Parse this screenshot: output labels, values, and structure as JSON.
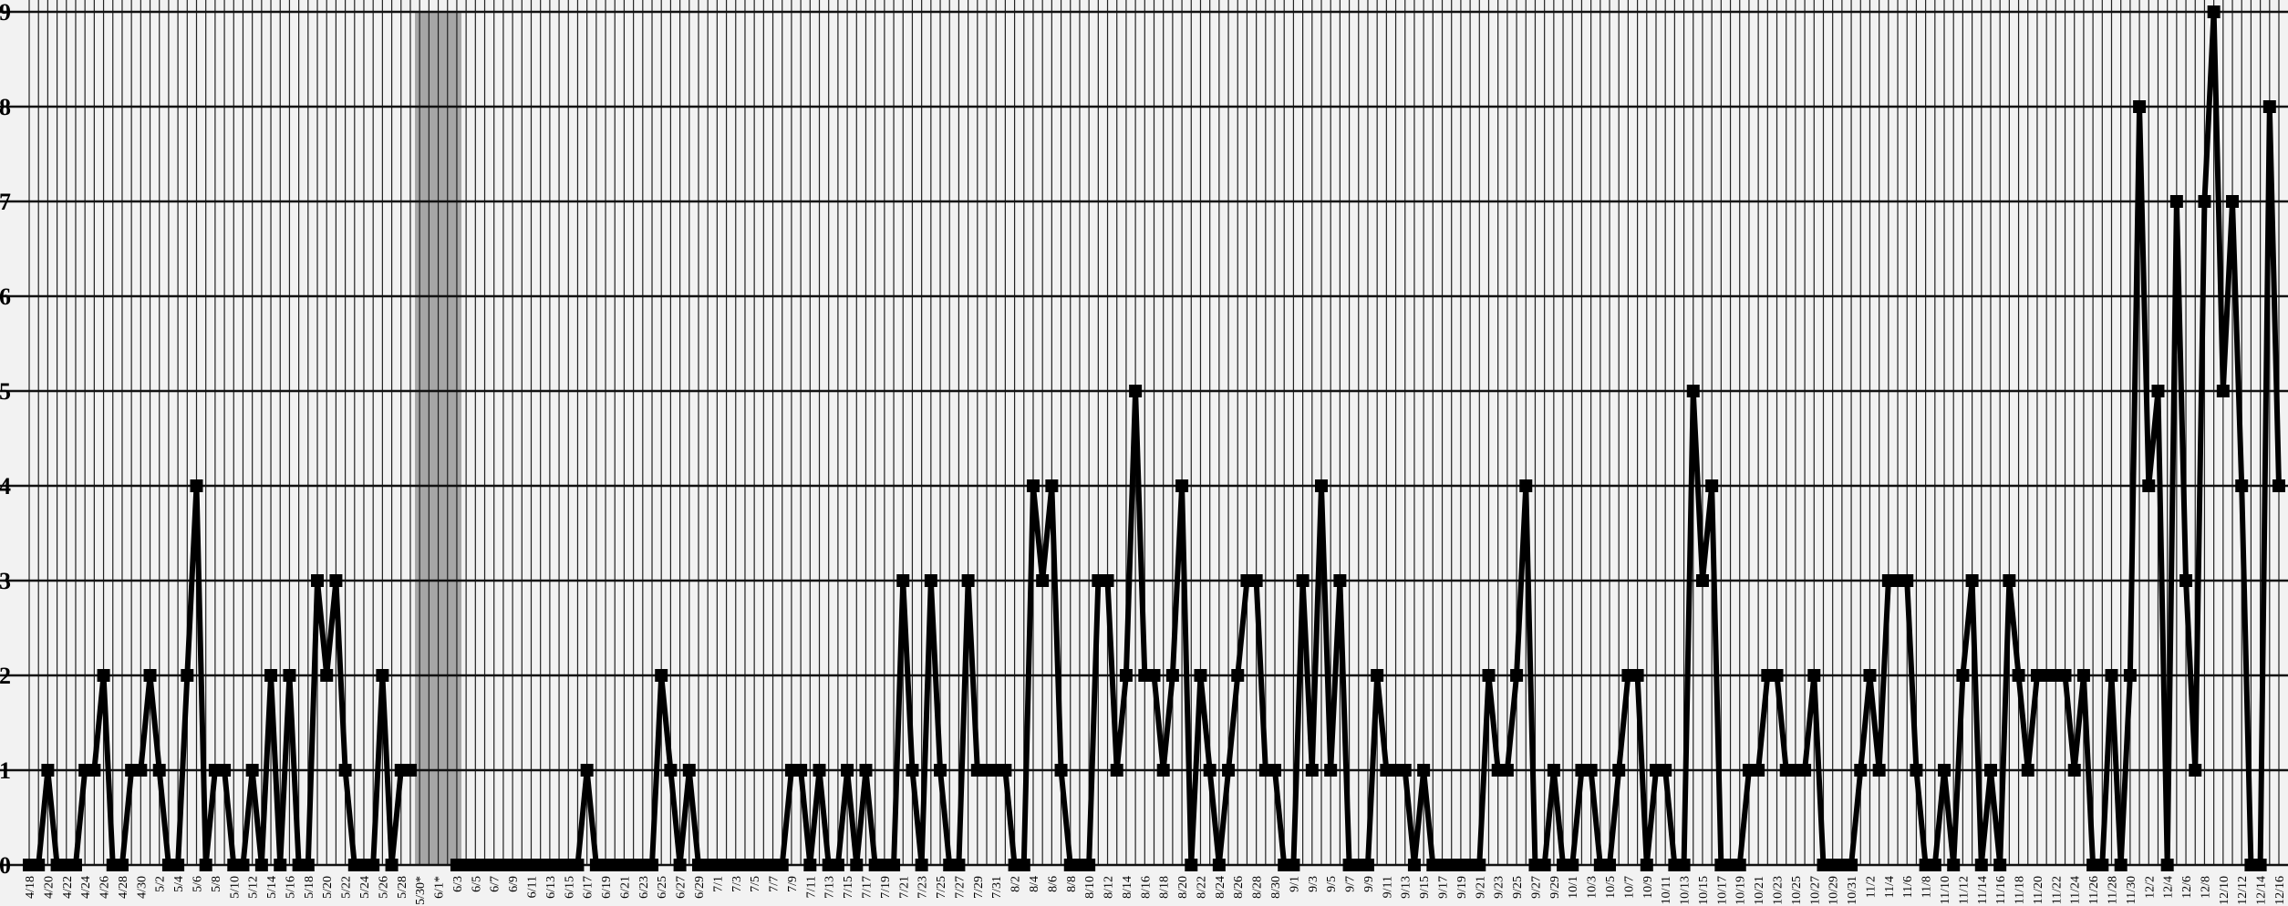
{
  "chart_data": {
    "type": "line",
    "categories": [
      "4/18",
      null,
      "4/20",
      null,
      "4/22",
      null,
      "4/24",
      null,
      "4/26",
      null,
      "4/28",
      null,
      "4/30",
      null,
      "5/2",
      null,
      "5/4",
      null,
      "5/6",
      null,
      "5/8",
      null,
      "5/10",
      null,
      "5/12",
      null,
      "5/14",
      null,
      "5/16",
      null,
      "5/18",
      null,
      "5/20",
      null,
      "5/22",
      null,
      "5/24",
      null,
      "5/26",
      null,
      "5/28",
      null,
      "5/30*",
      null,
      "6/1*",
      null,
      "6/3",
      null,
      "6/5",
      null,
      "6/7",
      null,
      "6/9",
      null,
      "6/11",
      null,
      "6/13",
      null,
      "6/15",
      null,
      "6/17",
      null,
      "6/19",
      null,
      "6/21",
      null,
      "6/23",
      null,
      "6/25",
      null,
      "6/27",
      null,
      "6/29",
      null,
      "7/1",
      null,
      "7/3",
      null,
      "7/5",
      null,
      "7/7",
      null,
      "7/9",
      null,
      "7/11",
      null,
      "7/13",
      null,
      "7/15",
      null,
      "7/17",
      null,
      "7/19",
      null,
      "7/21",
      null,
      "7/23",
      null,
      "7/25",
      null,
      "7/27",
      null,
      "7/29",
      null,
      "7/31",
      null,
      "8/2",
      null,
      "8/4",
      null,
      "8/6",
      null,
      "8/8",
      null,
      "8/10",
      null,
      "8/12",
      null,
      "8/14",
      null,
      "8/16",
      null,
      "8/18",
      null,
      "8/20",
      null,
      "8/22",
      null,
      "8/24",
      null,
      "8/26",
      null,
      "8/28",
      null,
      "8/30",
      null,
      "9/1",
      null,
      "9/3",
      null,
      "9/5",
      null,
      "9/7",
      null,
      "9/9",
      null,
      "9/11",
      null,
      "9/13",
      null,
      "9/15",
      null,
      "9/17",
      null,
      "9/19",
      null,
      "9/21",
      null,
      "9/23",
      null,
      "9/25",
      null,
      "9/27",
      null,
      "9/29",
      null,
      "10/1",
      null,
      "10/3",
      null,
      "10/5",
      null,
      "10/7",
      null,
      "10/9",
      null,
      "10/11",
      null,
      "10/13",
      null,
      "10/15",
      null,
      "10/17",
      null,
      "10/19",
      null,
      "10/21",
      null,
      "10/23",
      null,
      "10/25",
      null,
      "10/27",
      null,
      "10/29",
      null,
      "10/31",
      null,
      "11/2",
      null,
      "11/4",
      null,
      "11/6",
      null,
      "11/8",
      null,
      "11/10",
      null,
      "11/12",
      null,
      "11/14",
      null,
      "11/16",
      null,
      "11/18",
      null,
      "11/20",
      null,
      "11/22",
      null,
      "11/24",
      null,
      "11/26",
      null,
      "11/28",
      null,
      "11/30",
      null,
      "12/2",
      null,
      "12/4",
      null,
      "12/6",
      null,
      "12/8",
      null,
      "12/10",
      null,
      "12/12",
      null,
      "12/14",
      null,
      "12/16"
    ],
    "values": [
      0,
      0,
      1,
      0,
      0,
      0,
      1,
      1,
      2,
      0,
      0,
      1,
      1,
      2,
      1,
      0,
      0,
      2,
      4,
      0,
      1,
      1,
      0,
      0,
      1,
      0,
      2,
      0,
      2,
      0,
      0,
      3,
      2,
      3,
      1,
      0,
      0,
      0,
      2,
      0,
      1,
      1,
      null,
      null,
      null,
      null,
      0,
      0,
      0,
      0,
      0,
      0,
      0,
      0,
      0,
      0,
      0,
      0,
      0,
      0,
      1,
      0,
      0,
      0,
      0,
      0,
      0,
      0,
      2,
      1,
      0,
      1,
      0,
      0,
      0,
      0,
      0,
      0,
      0,
      0,
      0,
      0,
      1,
      1,
      0,
      1,
      0,
      0,
      1,
      0,
      1,
      0,
      0,
      0,
      3,
      1,
      0,
      3,
      1,
      0,
      0,
      3,
      1,
      1,
      1,
      1,
      0,
      0,
      4,
      3,
      4,
      1,
      0,
      0,
      0,
      3,
      3,
      1,
      2,
      5,
      2,
      2,
      1,
      2,
      4,
      0,
      2,
      1,
      0,
      1,
      2,
      3,
      3,
      1,
      1,
      0,
      0,
      3,
      1,
      4,
      1,
      3,
      0,
      0,
      0,
      2,
      1,
      1,
      1,
      0,
      1,
      0,
      0,
      0,
      0,
      0,
      0,
      2,
      1,
      1,
      2,
      4,
      0,
      0,
      1,
      0,
      0,
      1,
      1,
      0,
      0,
      1,
      2,
      2,
      0,
      1,
      1,
      0,
      0,
      5,
      3,
      4,
      0,
      0,
      0,
      1,
      1,
      2,
      2,
      1,
      1,
      1,
      2,
      0,
      0,
      0,
      0,
      1,
      2,
      1,
      3,
      3,
      3,
      1,
      0,
      0,
      1,
      0,
      2,
      3,
      0,
      1,
      0,
      3,
      2,
      1,
      2,
      2,
      2,
      2,
      1,
      2,
      0,
      0,
      2,
      0,
      2,
      8,
      4,
      5,
      0,
      7,
      3,
      1,
      7,
      9,
      5,
      7,
      4,
      0,
      0,
      8,
      4
    ],
    "color": "#000000",
    "shade_color": "#a6a6a6",
    "ylim": [
      0,
      9
    ],
    "yticks": [
      0,
      1,
      2,
      3,
      4,
      5,
      6,
      7,
      8,
      9
    ],
    "grid": true
  }
}
